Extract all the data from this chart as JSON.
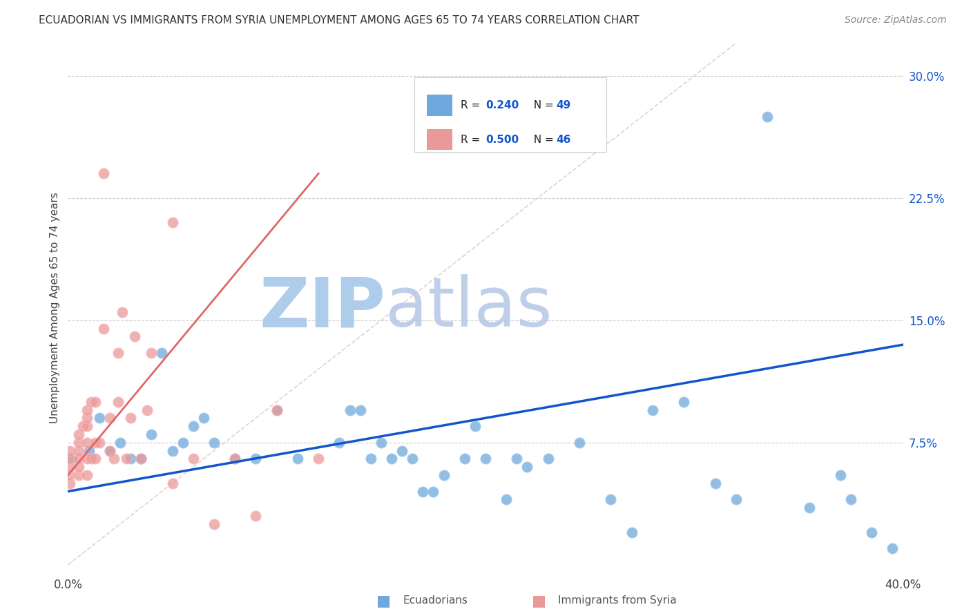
{
  "title": "ECUADORIAN VS IMMIGRANTS FROM SYRIA UNEMPLOYMENT AMONG AGES 65 TO 74 YEARS CORRELATION CHART",
  "source": "Source: ZipAtlas.com",
  "ylabel": "Unemployment Among Ages 65 to 74 years",
  "xlim": [
    0.0,
    0.4
  ],
  "ylim": [
    -0.005,
    0.32
  ],
  "yticks": [
    0.0,
    0.075,
    0.15,
    0.225,
    0.3
  ],
  "ytick_labels": [
    "",
    "7.5%",
    "15.0%",
    "22.5%",
    "30.0%"
  ],
  "xticks": [
    0.0,
    0.05,
    0.1,
    0.15,
    0.2,
    0.25,
    0.3,
    0.35,
    0.4
  ],
  "xtick_labels": [
    "0.0%",
    "",
    "",
    "",
    "",
    "",
    "",
    "",
    "40.0%"
  ],
  "blue_R": 0.24,
  "blue_N": 49,
  "pink_R": 0.5,
  "pink_N": 46,
  "blue_color": "#6fa8dc",
  "pink_color": "#ea9999",
  "blue_line_color": "#1155cc",
  "pink_line_color": "#e06666",
  "watermark_zip_color": "#9fc5e8",
  "watermark_atlas_color": "#b4c7e7",
  "legend_label_blue": "Ecuadorians",
  "legend_label_pink": "Immigrants from Syria",
  "blue_scatter_x": [
    0.002,
    0.01,
    0.015,
    0.02,
    0.025,
    0.03,
    0.035,
    0.04,
    0.045,
    0.05,
    0.055,
    0.06,
    0.065,
    0.07,
    0.08,
    0.09,
    0.1,
    0.11,
    0.13,
    0.135,
    0.14,
    0.145,
    0.15,
    0.155,
    0.16,
    0.165,
    0.17,
    0.175,
    0.18,
    0.19,
    0.195,
    0.2,
    0.21,
    0.215,
    0.22,
    0.23,
    0.245,
    0.26,
    0.27,
    0.28,
    0.295,
    0.31,
    0.32,
    0.335,
    0.355,
    0.37,
    0.375,
    0.385,
    0.395
  ],
  "blue_scatter_y": [
    0.065,
    0.07,
    0.09,
    0.07,
    0.075,
    0.065,
    0.065,
    0.08,
    0.13,
    0.07,
    0.075,
    0.085,
    0.09,
    0.075,
    0.065,
    0.065,
    0.095,
    0.065,
    0.075,
    0.095,
    0.095,
    0.065,
    0.075,
    0.065,
    0.07,
    0.065,
    0.045,
    0.045,
    0.055,
    0.065,
    0.085,
    0.065,
    0.04,
    0.065,
    0.06,
    0.065,
    0.075,
    0.04,
    0.02,
    0.095,
    0.1,
    0.05,
    0.04,
    0.275,
    0.035,
    0.055,
    0.04,
    0.02,
    0.01
  ],
  "pink_scatter_x": [
    0.001,
    0.001,
    0.001,
    0.001,
    0.001,
    0.005,
    0.005,
    0.005,
    0.005,
    0.005,
    0.005,
    0.007,
    0.009,
    0.009,
    0.009,
    0.009,
    0.009,
    0.009,
    0.011,
    0.011,
    0.013,
    0.013,
    0.013,
    0.015,
    0.017,
    0.017,
    0.02,
    0.02,
    0.022,
    0.024,
    0.024,
    0.026,
    0.028,
    0.03,
    0.032,
    0.035,
    0.038,
    0.04,
    0.05,
    0.05,
    0.06,
    0.07,
    0.08,
    0.09,
    0.1,
    0.12
  ],
  "pink_scatter_y": [
    0.05,
    0.055,
    0.06,
    0.065,
    0.07,
    0.055,
    0.06,
    0.065,
    0.07,
    0.075,
    0.08,
    0.085,
    0.055,
    0.065,
    0.075,
    0.085,
    0.09,
    0.095,
    0.065,
    0.1,
    0.065,
    0.075,
    0.1,
    0.075,
    0.145,
    0.24,
    0.07,
    0.09,
    0.065,
    0.13,
    0.1,
    0.155,
    0.065,
    0.09,
    0.14,
    0.065,
    0.095,
    0.13,
    0.05,
    0.21,
    0.065,
    0.025,
    0.065,
    0.03,
    0.095,
    0.065
  ],
  "blue_line_x": [
    0.0,
    0.4
  ],
  "blue_line_y": [
    0.045,
    0.135
  ],
  "pink_line_x": [
    0.0,
    0.12
  ],
  "pink_line_y": [
    0.055,
    0.24
  ],
  "diag_line_x": [
    0.0,
    0.32
  ],
  "diag_line_y": [
    0.0,
    0.32
  ]
}
